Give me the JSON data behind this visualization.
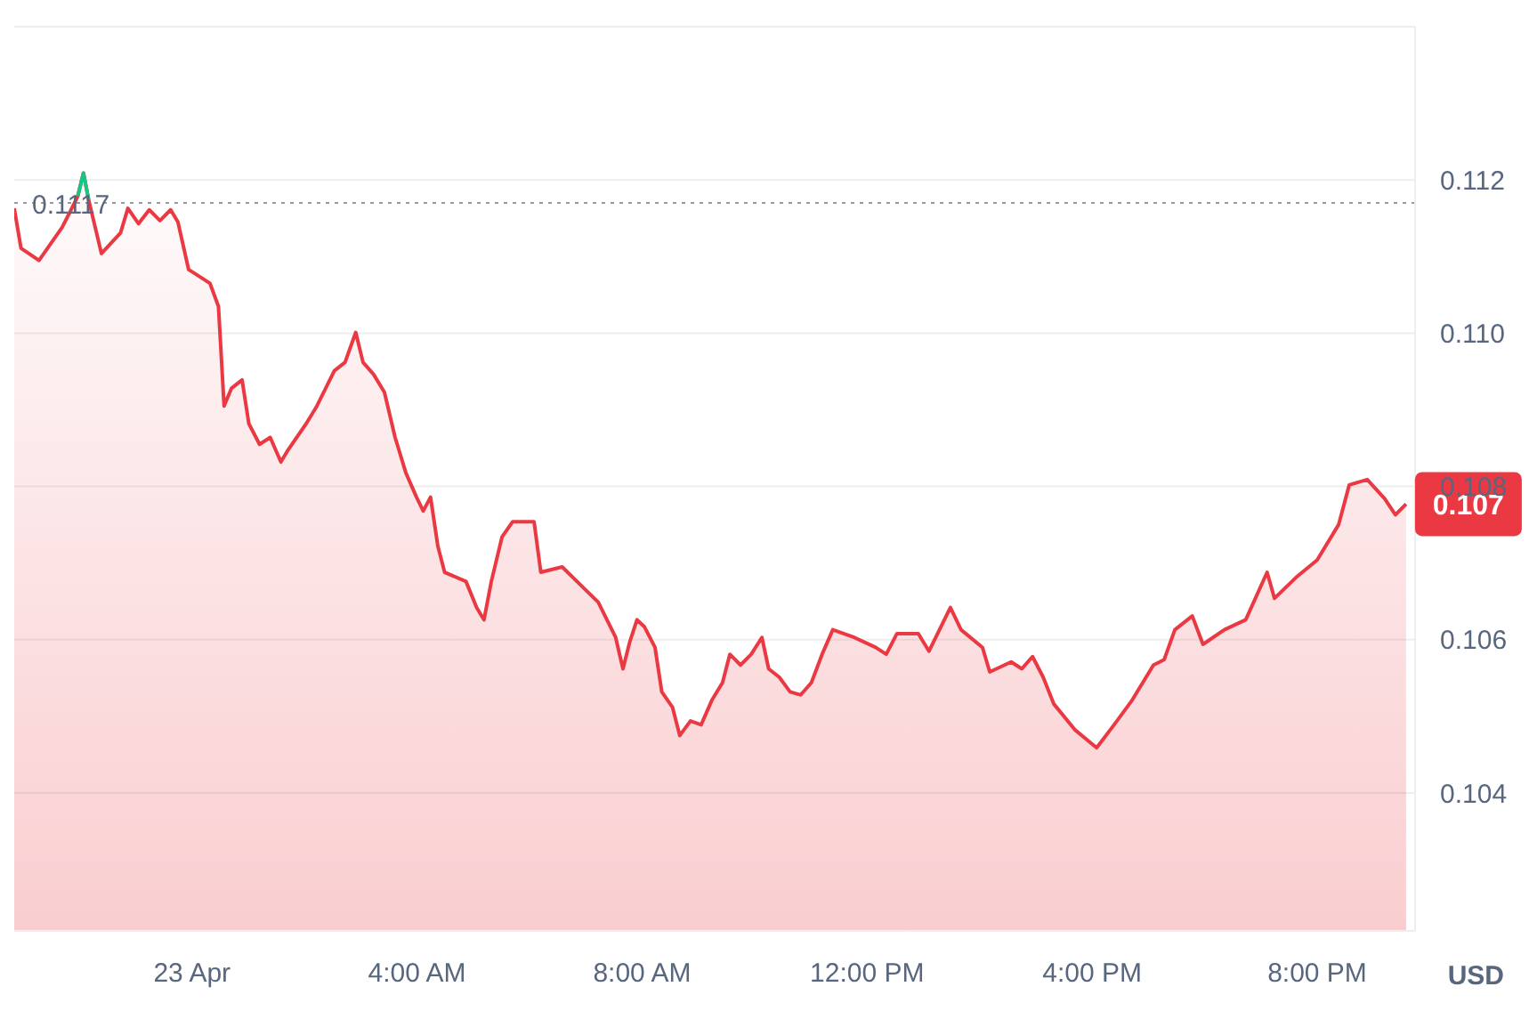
{
  "chart_data": {
    "type": "area",
    "ylabel": "USD",
    "xlim": [
      -3.16,
      21.74
    ],
    "xticks": [
      {
        "value": 0,
        "label": "23 Apr"
      },
      {
        "value": 4,
        "label": "4:00 AM"
      },
      {
        "value": 8,
        "label": "8:00 AM"
      },
      {
        "value": 12,
        "label": "12:00 PM"
      },
      {
        "value": 16,
        "label": "4:00 PM"
      },
      {
        "value": 20,
        "label": "8:00 PM"
      }
    ],
    "ylim": [
      0.1022,
      0.114
    ],
    "yticks": [
      0.104,
      0.106,
      0.108,
      {
        "value": 0.11,
        "label": "0.110"
      },
      0.112
    ],
    "grid": "y",
    "marker": "none",
    "line_style": "solid",
    "series": [
      {
        "color": "#ea3943",
        "x": [
          -3.16,
          -3.04,
          -2.72,
          -2.31,
          -2.15,
          -2.03,
          -1.93,
          -1.84,
          -1.61,
          -1.27,
          -1.14,
          -0.95,
          -0.76,
          -0.57,
          -0.38,
          -0.25,
          -0.06,
          0.32,
          0.47,
          0.57,
          0.7,
          0.89,
          1.01,
          1.2,
          1.39,
          1.58,
          1.71,
          2.03,
          2.22,
          2.53,
          2.72,
          2.91,
          3.04,
          3.23,
          3.42,
          3.61,
          3.8,
          3.99,
          4.11,
          4.24,
          4.37,
          4.49,
          4.87,
          5.06,
          5.19,
          5.32,
          5.51,
          5.7,
          6.08,
          6.2,
          6.58,
          6.9,
          7.22,
          7.53,
          7.66,
          7.78,
          7.91,
          8.04,
          8.23,
          8.35,
          8.54,
          8.67,
          8.86,
          9.05,
          9.24,
          9.43,
          9.56,
          9.75,
          9.94,
          10.13,
          10.25,
          10.44,
          10.63,
          10.82,
          11.01,
          11.2,
          11.39,
          11.77,
          12.15,
          12.34,
          12.53,
          12.91,
          13.1,
          13.48,
          13.67,
          14.05,
          14.18,
          14.56,
          14.75,
          14.94,
          15.13,
          15.32,
          15.7,
          16.08,
          16.39,
          16.71,
          17.09,
          17.28,
          17.47,
          17.78,
          17.97,
          18.35,
          18.73,
          19.11,
          19.24,
          19.62,
          20,
          20.38,
          20.57,
          20.89,
          21.2,
          21.39,
          21.58
        ],
        "values": [
          0.11163,
          0.11111,
          0.11095,
          0.11138,
          0.11161,
          0.11179,
          0.11209,
          0.11175,
          0.11104,
          0.11131,
          0.11163,
          0.11143,
          0.11161,
          0.11147,
          0.11161,
          0.11145,
          0.11083,
          0.11065,
          0.11035,
          0.10905,
          0.10928,
          0.10939,
          0.10882,
          0.10855,
          0.10864,
          0.10832,
          0.10848,
          0.10882,
          0.10905,
          0.10951,
          0.10962,
          0.11001,
          0.10962,
          0.10946,
          0.10923,
          0.10864,
          0.10818,
          0.10786,
          0.10768,
          0.10786,
          0.10722,
          0.10688,
          0.10676,
          0.10642,
          0.10626,
          0.10676,
          0.10734,
          0.10754,
          0.10754,
          0.10688,
          0.10695,
          0.10672,
          0.10649,
          0.10603,
          0.10562,
          0.10597,
          0.10626,
          0.10617,
          0.1059,
          0.10532,
          0.10512,
          0.10475,
          0.10494,
          0.10489,
          0.10521,
          0.10544,
          0.10581,
          0.10567,
          0.10581,
          0.10603,
          0.10562,
          0.10551,
          0.10532,
          0.10528,
          0.10544,
          0.10581,
          0.10613,
          0.10603,
          0.1059,
          0.10581,
          0.10608,
          0.10608,
          0.10585,
          0.10642,
          0.10613,
          0.1059,
          0.10558,
          0.10571,
          0.10562,
          0.10578,
          0.10551,
          0.10516,
          0.10482,
          0.10459,
          0.10489,
          0.10521,
          0.10567,
          0.10574,
          0.10613,
          0.10631,
          0.10594,
          0.10613,
          0.10626,
          0.10688,
          0.10654,
          0.10681,
          0.10704,
          0.1075,
          0.10802,
          0.10809,
          0.10784,
          0.10763,
          0.10777
        ]
      },
      {
        "type": "line",
        "color": "#16c784",
        "x": [
          -2.03,
          -1.93,
          -1.84
        ],
        "values": [
          0.11179,
          0.11209,
          0.11175
        ]
      }
    ],
    "ref_lines": [
      {
        "axis": "y",
        "value": 0.1117,
        "label": "0.1117",
        "color": "#999999",
        "line_style": "dotted"
      }
    ],
    "annotations": [
      {
        "text": "0.107",
        "x": 21.58,
        "y": 0.10777
      }
    ]
  }
}
